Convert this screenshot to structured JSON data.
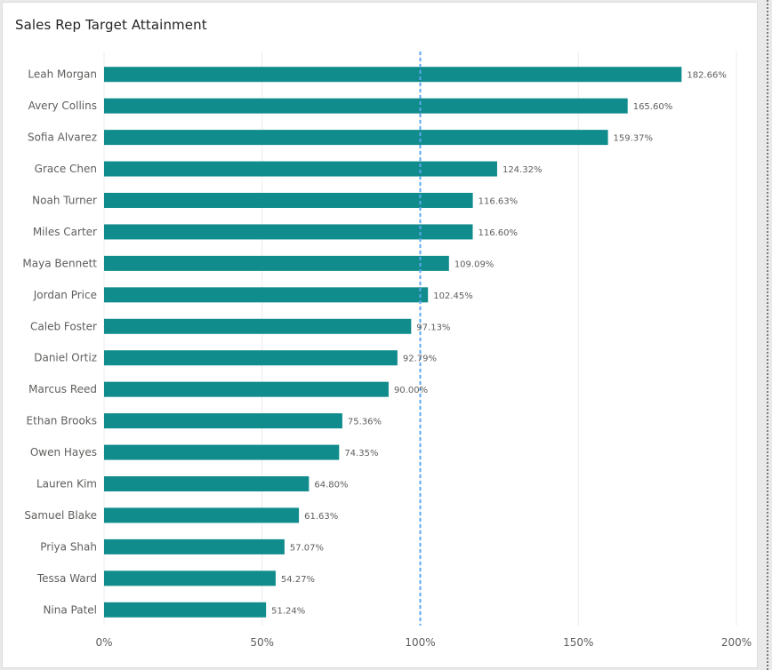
{
  "page": {
    "title": "Sales Rep Target Attainment"
  },
  "chart_data": {
    "type": "bar",
    "orientation": "horizontal",
    "title": "Sales Rep Target Attainment",
    "categories": [
      "Leah Morgan",
      "Avery Collins",
      "Sofia Alvarez",
      "Grace Chen",
      "Noah Turner",
      "Miles Carter",
      "Maya Bennett",
      "Jordan Price",
      "Caleb Foster",
      "Daniel Ortiz",
      "Marcus Reed",
      "Ethan Brooks",
      "Owen Hayes",
      "Lauren Kim",
      "Samuel Blake",
      "Priya Shah",
      "Tessa Ward",
      "Nina Patel"
    ],
    "values": [
      182.66,
      165.6,
      159.37,
      124.32,
      116.63,
      116.6,
      109.09,
      102.45,
      97.13,
      92.79,
      90.0,
      75.36,
      74.35,
      64.8,
      61.63,
      57.07,
      54.27,
      51.24
    ],
    "value_labels": [
      "182.66%",
      "165.60%",
      "159.37%",
      "124.32%",
      "116.63%",
      "116.60%",
      "109.09%",
      "102.45%",
      "97.13%",
      "92.79%",
      "90.00%",
      "75.36%",
      "74.35%",
      "64.80%",
      "61.63%",
      "57.07%",
      "54.27%",
      "51.24%"
    ],
    "xlim": [
      0,
      200
    ],
    "x_ticks": [
      0,
      50,
      100,
      150,
      200
    ],
    "x_tick_labels": [
      "0%",
      "50%",
      "100%",
      "150%",
      "200%"
    ],
    "reference_line": {
      "value": 100,
      "style": "dashed"
    },
    "grid": true,
    "colors": {
      "bar": "#118c8c",
      "reference_line": "#5aa9f0",
      "grid": "#ececec"
    }
  }
}
